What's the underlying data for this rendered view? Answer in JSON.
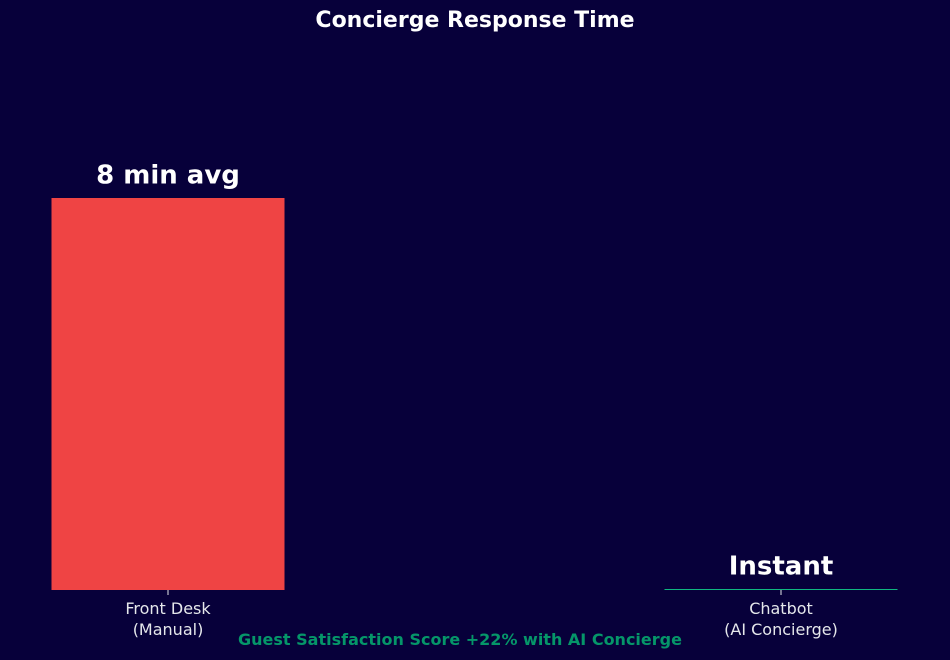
{
  "chart_data": {
    "type": "bar",
    "title": "Concierge Response Time",
    "categories": [
      "Front Desk\n(Manual)",
      "Chatbot\n(AI Concierge)"
    ],
    "values": [
      8,
      0.02
    ],
    "value_labels": [
      "8 min avg",
      "Instant"
    ],
    "colors": [
      "#ef4444",
      "#10b981"
    ],
    "ylim": [
      0,
      10
    ],
    "annotation": "Guest Satisfaction Score +22% with AI Concierge",
    "annotation_color": "#059669"
  }
}
